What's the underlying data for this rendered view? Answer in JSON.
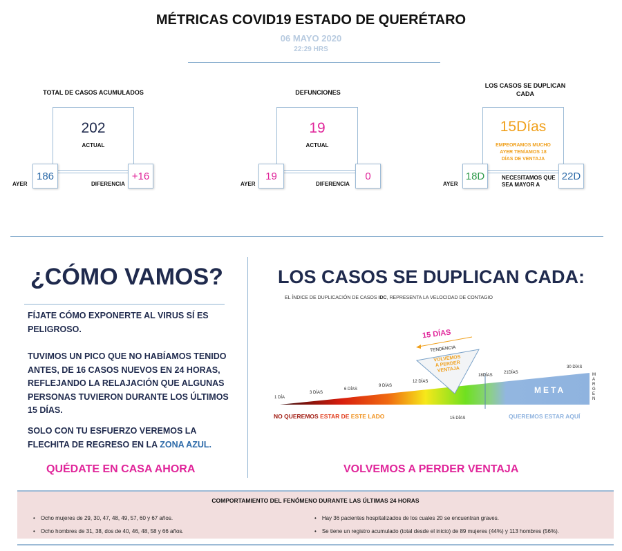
{
  "header": {
    "title": "MÉTRICAS COVID19 ESTADO DE QUERÉTARO",
    "date": "06 MAYO 2020",
    "time": "22:29 HRS"
  },
  "cards": [
    {
      "title": "TOTAL DE CASOS ACUMULADOS",
      "value": "202",
      "value_label": "ACTUAL",
      "left_label": "AYER",
      "left_value": "186",
      "right_label": "DIFERENCIA",
      "right_value": "+16"
    },
    {
      "title": "DEFUNCIONES",
      "value": "19",
      "value_label": "ACTUAL",
      "left_label": "AYER",
      "left_value": "19",
      "right_label": "DIFERENCIA",
      "right_value": "0"
    },
    {
      "title": "LOS CASOS SE DUPLICAN CADA",
      "value": "15Días",
      "value_note": [
        "EMPEORAMOS MUCHO",
        "AYER TENÍAMOS 18",
        "DÍAS DE VENTAJA"
      ],
      "left_label": "AYER",
      "left_value": "18D",
      "right_label": "NECESITAMOS QUE SEA MAYOR A",
      "right_value": "22D"
    }
  ],
  "colors": {
    "navy": "#1f2a4d",
    "magenta": "#e0259a",
    "orange": "#f0a01c",
    "blue": "#2d6aa8",
    "green": "#2f9a4a",
    "pink_bg": "#f2dede"
  },
  "left": {
    "heading": "¿CÓMO VAMOS?",
    "p1": "FÍJATE CÓMO EXPONERTE AL VIRUS SÍ ES PELIGROSO.",
    "p2": "TUVIMOS UN PICO QUE NO HABÍAMOS TENIDO ANTES, DE 16 CASOS NUEVOS EN 24 HORAS, REFLEJANDO LA RELAJACIÓN QUE ALGUNAS PERSONAS TUVIERON DURANTE LOS ÚLTIMOS 15 DÍAS.",
    "p3": "SOLO CON TU ESFUERZO VEREMOS LA FLECHITA  DE REGRESO EN LA ",
    "p3_link": "ZONA AZUL.",
    "cta": "QUÉDATE EN CASA AHORA"
  },
  "right": {
    "heading": "LOS CASOS SE DUPLICAN CADA:",
    "subtitle_a": "EL ÍNDICE DE DUPLICACIÓN DE CASOS ",
    "subtitle_b": "IDC",
    "subtitle_c": ", REPRESENTA LA VELOCIDAD DE CONTAGIO",
    "cta": "VOLVEMOS A PERDER VENTAJA",
    "graphic": {
      "current": "15 DÍAS",
      "trend": "TENDENCIA",
      "warning": [
        "VOLVEMOS",
        "A PERDER",
        "VENTAJA"
      ],
      "ticks": [
        "1 DÍA",
        "3 DÍAS",
        "6 DÍAS",
        "9 DÍAS",
        "12 DÍAS",
        "18DÍAS",
        "21DÍAS",
        "30 DÍAS"
      ],
      "below_tick": "15 DÍAS",
      "goal": "META",
      "margin": "MARGEN",
      "bad_a": "NO QUEREMOS ",
      "bad_b": "ESTAR DE ",
      "bad_c": "ESTE LADO",
      "good": "QUEREMOS ESTAR AQUÍ"
    }
  },
  "bottom": {
    "title": "COMPORTAMIENTO DEL FENÓMENO DURANTE LAS ÚLTIMAS 24 HORAS",
    "items": [
      "Ocho mujeres de 29, 30, 47, 48, 49, 57, 60 y 67 años.",
      "Ocho hombres de 31, 38, dos de 40, 46, 48, 58 y 66 años.",
      "Hay 36 pacientes hospitalizados de los cuales 20 se encuentran graves.",
      "Se tiene un registro acumulado (total desde el inicio) de 89 mujeres (44%) y 113 hombres (56%)."
    ]
  }
}
